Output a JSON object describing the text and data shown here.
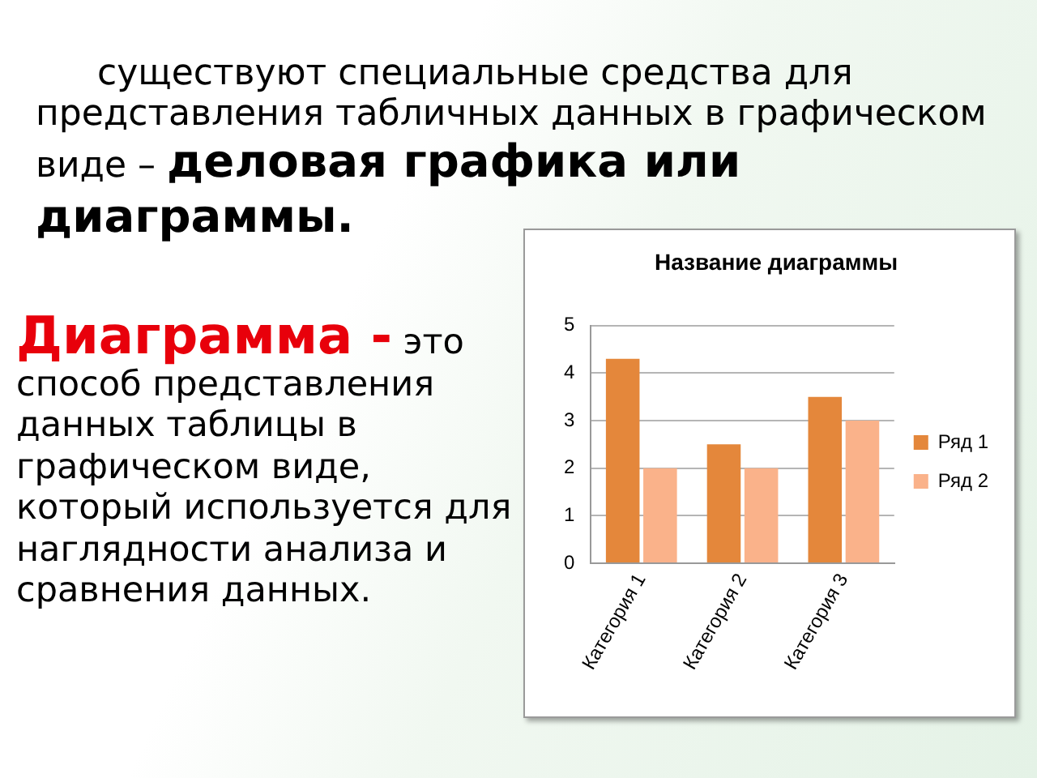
{
  "chart_data": {
    "type": "bar",
    "title": "Название диаграммы",
    "categories": [
      "Категория 1",
      "Категория 2",
      "Категория 3"
    ],
    "series": [
      {
        "name": "Ряд 1",
        "color": "#e4873b",
        "values": [
          4.3,
          2.5,
          3.5
        ]
      },
      {
        "name": "Ряд 2",
        "color": "#fab28a",
        "values": [
          2,
          2,
          3
        ]
      }
    ],
    "ylim": [
      0,
      5
    ],
    "yticks": [
      0,
      1,
      2,
      3,
      4,
      5
    ],
    "grid": "y",
    "legend": "right",
    "annotations": [
      "существуют специальные средства для представления табличных данных в графическом виде –",
      "деловая графика или диаграммы.",
      "Диаграмма -",
      "это способ представления данных таблицы в графическом виде, который используется для наглядности анализа и сравнения данных."
    ]
  }
}
